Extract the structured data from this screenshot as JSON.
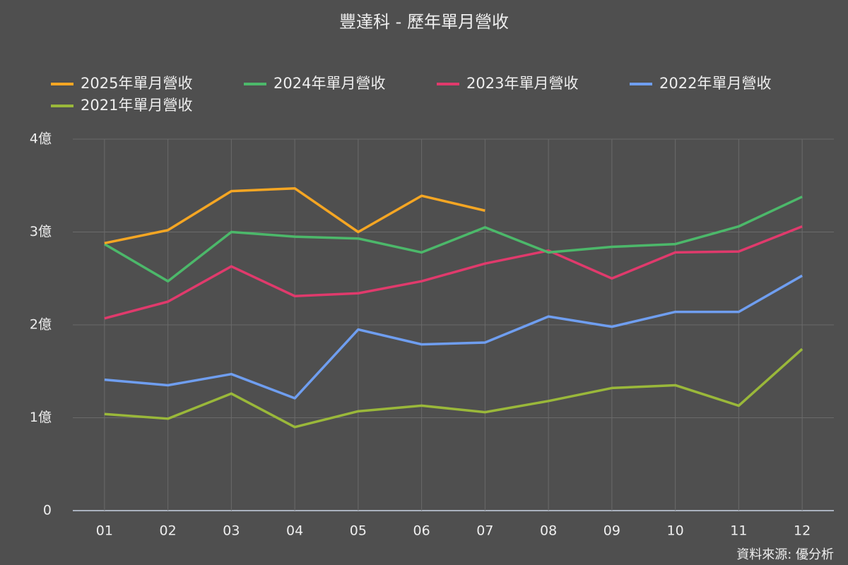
{
  "chart_data": {
    "type": "line",
    "title": "豐達科 - 歷年單月營收",
    "categories": [
      "01",
      "02",
      "03",
      "04",
      "05",
      "06",
      "07",
      "08",
      "09",
      "10",
      "11",
      "12"
    ],
    "series": [
      {
        "name": "2025年單月營收",
        "color": "#f5a623",
        "values": [
          2.88,
          3.02,
          3.44,
          3.47,
          3.0,
          3.39,
          3.23,
          null,
          null,
          null,
          null,
          null
        ]
      },
      {
        "name": "2024年單月營收",
        "color": "#4cb86a",
        "values": [
          2.87,
          2.47,
          3.0,
          2.95,
          2.93,
          2.78,
          3.05,
          2.78,
          2.84,
          2.87,
          3.06,
          3.38
        ]
      },
      {
        "name": "2023年單月營收",
        "color": "#e03a6c",
        "values": [
          2.07,
          2.25,
          2.63,
          2.31,
          2.34,
          2.47,
          2.66,
          2.8,
          2.5,
          2.78,
          2.79,
          3.06
        ]
      },
      {
        "name": "2022年單月營收",
        "color": "#6f9ef0",
        "values": [
          1.41,
          1.35,
          1.47,
          1.21,
          1.95,
          1.79,
          1.81,
          2.09,
          1.98,
          2.14,
          2.14,
          2.53
        ]
      },
      {
        "name": "2021年單月營收",
        "color": "#9ab83a",
        "values": [
          1.04,
          0.99,
          1.26,
          0.9,
          1.07,
          1.13,
          1.06,
          1.18,
          1.32,
          1.35,
          1.13,
          1.74
        ]
      }
    ],
    "ylim": [
      0,
      4
    ],
    "yticks": [
      0,
      {
        "value": 1,
        "label": "1億"
      },
      {
        "value": 2,
        "label": "2億"
      },
      {
        "value": 3,
        "label": "3億"
      },
      {
        "value": 4,
        "label": "4億"
      }
    ],
    "grid": true,
    "legend": "top",
    "source": "資料來源: 優分析"
  }
}
